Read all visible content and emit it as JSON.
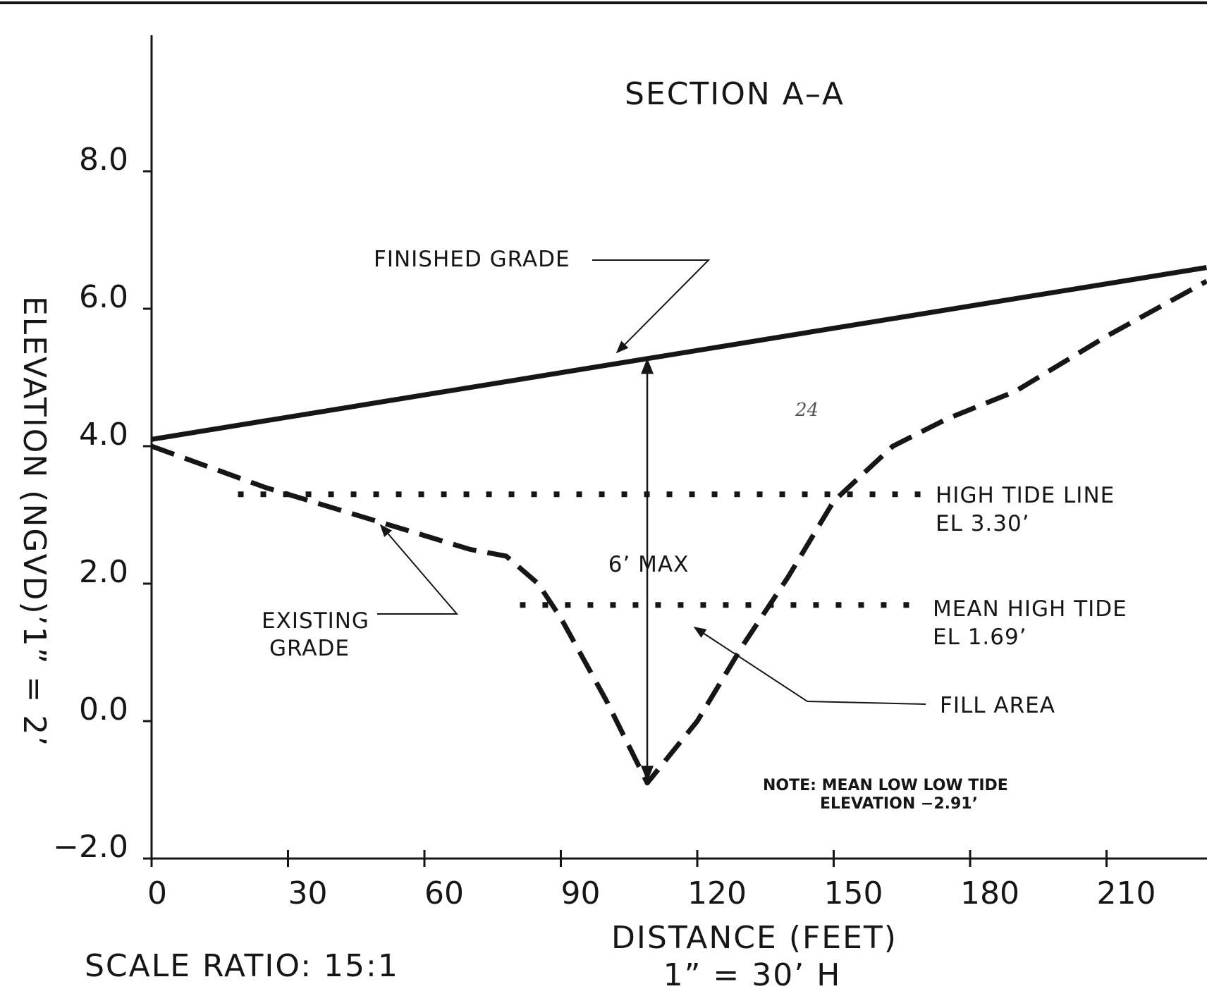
{
  "chart_data": {
    "type": "line",
    "title": "SECTION A–A",
    "xlabel": "DISTANCE (FEET)",
    "xlabel_scale": "1” = 30’ H",
    "ylabel": "ELEVATION (NGVD)’1” = 2’",
    "scale_note": "SCALE RATIO: 15:1",
    "x_ticks": [
      0,
      30,
      60,
      90,
      120,
      150,
      180,
      210
    ],
    "x_tick_labels": [
      "0",
      "30",
      "60",
      "90",
      "120",
      "150",
      "180",
      "210"
    ],
    "y_ticks": [
      -2,
      0,
      2,
      4,
      6,
      8
    ],
    "y_tick_labels": [
      "−2.0",
      "0.0",
      "2.0",
      "4.0",
      "6.0",
      "8.0"
    ],
    "xlim": [
      0,
      232
    ],
    "ylim": [
      -2,
      10.4
    ],
    "grid": false,
    "series": [
      {
        "name": "FINISHED GRADE",
        "style": "solid",
        "x": [
          0,
          232
        ],
        "y": [
          4.1,
          6.6
        ]
      },
      {
        "name": "EXISTING GRADE",
        "style": "dashed",
        "x": [
          0,
          25,
          50,
          70,
          78,
          85,
          90,
          100,
          109,
          120,
          130,
          140,
          150,
          163,
          175,
          190,
          210,
          232
        ],
        "y": [
          4.0,
          3.4,
          2.9,
          2.5,
          2.4,
          2.0,
          1.5,
          0.3,
          -0.9,
          0.0,
          1.1,
          2.1,
          3.2,
          4.0,
          4.4,
          4.8,
          5.6,
          6.4
        ]
      }
    ],
    "reference_lines": [
      {
        "label_line1": "HIGH TIDE LINE",
        "label_line2": "EL 3.30’",
        "y": 3.3,
        "x_start": 19,
        "x_end": 170,
        "style": "dotted"
      },
      {
        "label_line1": "MEAN HIGH TIDE",
        "label_line2": "EL 1.69’",
        "y": 1.69,
        "x_start": 81,
        "x_end": 170,
        "style": "dotted"
      }
    ],
    "dimension": {
      "label": "6’ MAX",
      "x": 109,
      "y_from": -0.9,
      "y_to": 5.3
    },
    "annotations": {
      "finished_grade": "FINISHED GRADE",
      "existing_grade_line1": "EXISTING",
      "existing_grade_line2": "GRADE",
      "fill_area": "FILL AREA",
      "note_line1": "NOTE: MEAN LOW LOW TIDE",
      "note_line2": "ELEVATION −2.91’",
      "handwritten_mark": "24"
    }
  }
}
